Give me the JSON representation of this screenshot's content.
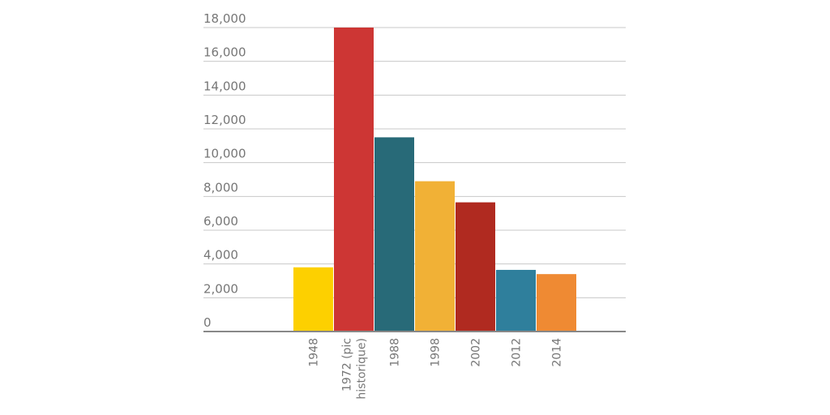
{
  "chart_data": {
    "type": "bar",
    "categories": [
      [
        "1948"
      ],
      [
        "1972 (pic",
        "historique)"
      ],
      [
        "1988"
      ],
      [
        "1998"
      ],
      [
        "2002"
      ],
      [
        "2012"
      ],
      [
        "2014"
      ]
    ],
    "values": [
      3800,
      18000,
      11500,
      8900,
      7650,
      3650,
      3400
    ],
    "bar_colors": [
      "#fdd000",
      "#cd3634",
      "#286a78",
      "#f1b136",
      "#b02a20",
      "#2f7f9c",
      "#ef8a33"
    ],
    "y_ticks": [
      "0",
      "2,000",
      "4,000",
      "6,000",
      "8,000",
      "10,000",
      "12,000",
      "14,000",
      "16,000",
      "18,000"
    ],
    "ylim": [
      0,
      18000
    ],
    "grid": true,
    "legend": "none",
    "title": "",
    "xlabel": "",
    "ylabel": ""
  }
}
